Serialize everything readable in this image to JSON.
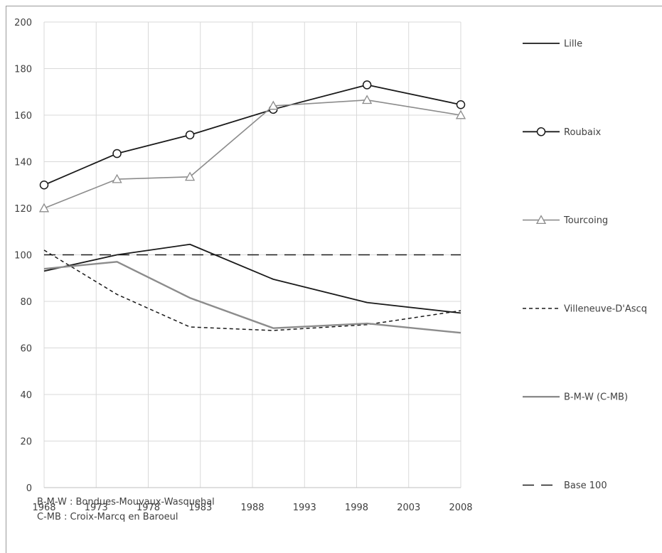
{
  "chart_data": {
    "type": "line",
    "x": [
      1968,
      1975,
      1982,
      1990,
      1999,
      2008
    ],
    "x_ticks": [
      "1968",
      "1973",
      "1978",
      "1983",
      "1988",
      "1993",
      "1998",
      "2003",
      "2008"
    ],
    "xlim": [
      1968,
      2008
    ],
    "ylim": [
      0,
      200
    ],
    "y_ticks": [
      "0",
      "20",
      "40",
      "60",
      "80",
      "100",
      "120",
      "140",
      "160",
      "180",
      "200"
    ],
    "grid": true,
    "legend_position": "right",
    "series": [
      {
        "name": "Lille",
        "values": [
          93,
          100,
          104.5,
          89.5,
          79.5,
          75
        ],
        "color": "#1a1a1a",
        "dash": "solid",
        "marker": "none",
        "width": 1.8
      },
      {
        "name": "Roubaix",
        "values": [
          130,
          143.5,
          151.5,
          162.5,
          173,
          164.5
        ],
        "color": "#1a1a1a",
        "dash": "solid",
        "marker": "circle",
        "width": 1.8
      },
      {
        "name": "Tourcoing",
        "values": [
          120,
          132.5,
          133.5,
          164,
          166.5,
          160
        ],
        "color": "#8c8c8c",
        "dash": "solid",
        "marker": "triangle",
        "width": 1.6
      },
      {
        "name": "Villeneuve-D'Ascq",
        "values": [
          102,
          83,
          69,
          67.5,
          70,
          76
        ],
        "color": "#1a1a1a",
        "dash": "short",
        "marker": "none",
        "width": 1.5
      },
      {
        "name": "B-M-W (C-MB)",
        "values": [
          94,
          97,
          81.5,
          68.5,
          70.5,
          66.5
        ],
        "color": "#8c8c8c",
        "dash": "solid",
        "marker": "none",
        "width": 2.4
      },
      {
        "name": "Base 100",
        "values": [
          100,
          100,
          100,
          100,
          100,
          100
        ],
        "color": "#1a1a1a",
        "dash": "long",
        "marker": "none",
        "width": 1.6
      }
    ]
  },
  "notes": {
    "line1": "B-M-W : Bondues-Mouvaux-Wasquehal",
    "line2": "C-MB : Croix-Marcq en Baroeul"
  }
}
